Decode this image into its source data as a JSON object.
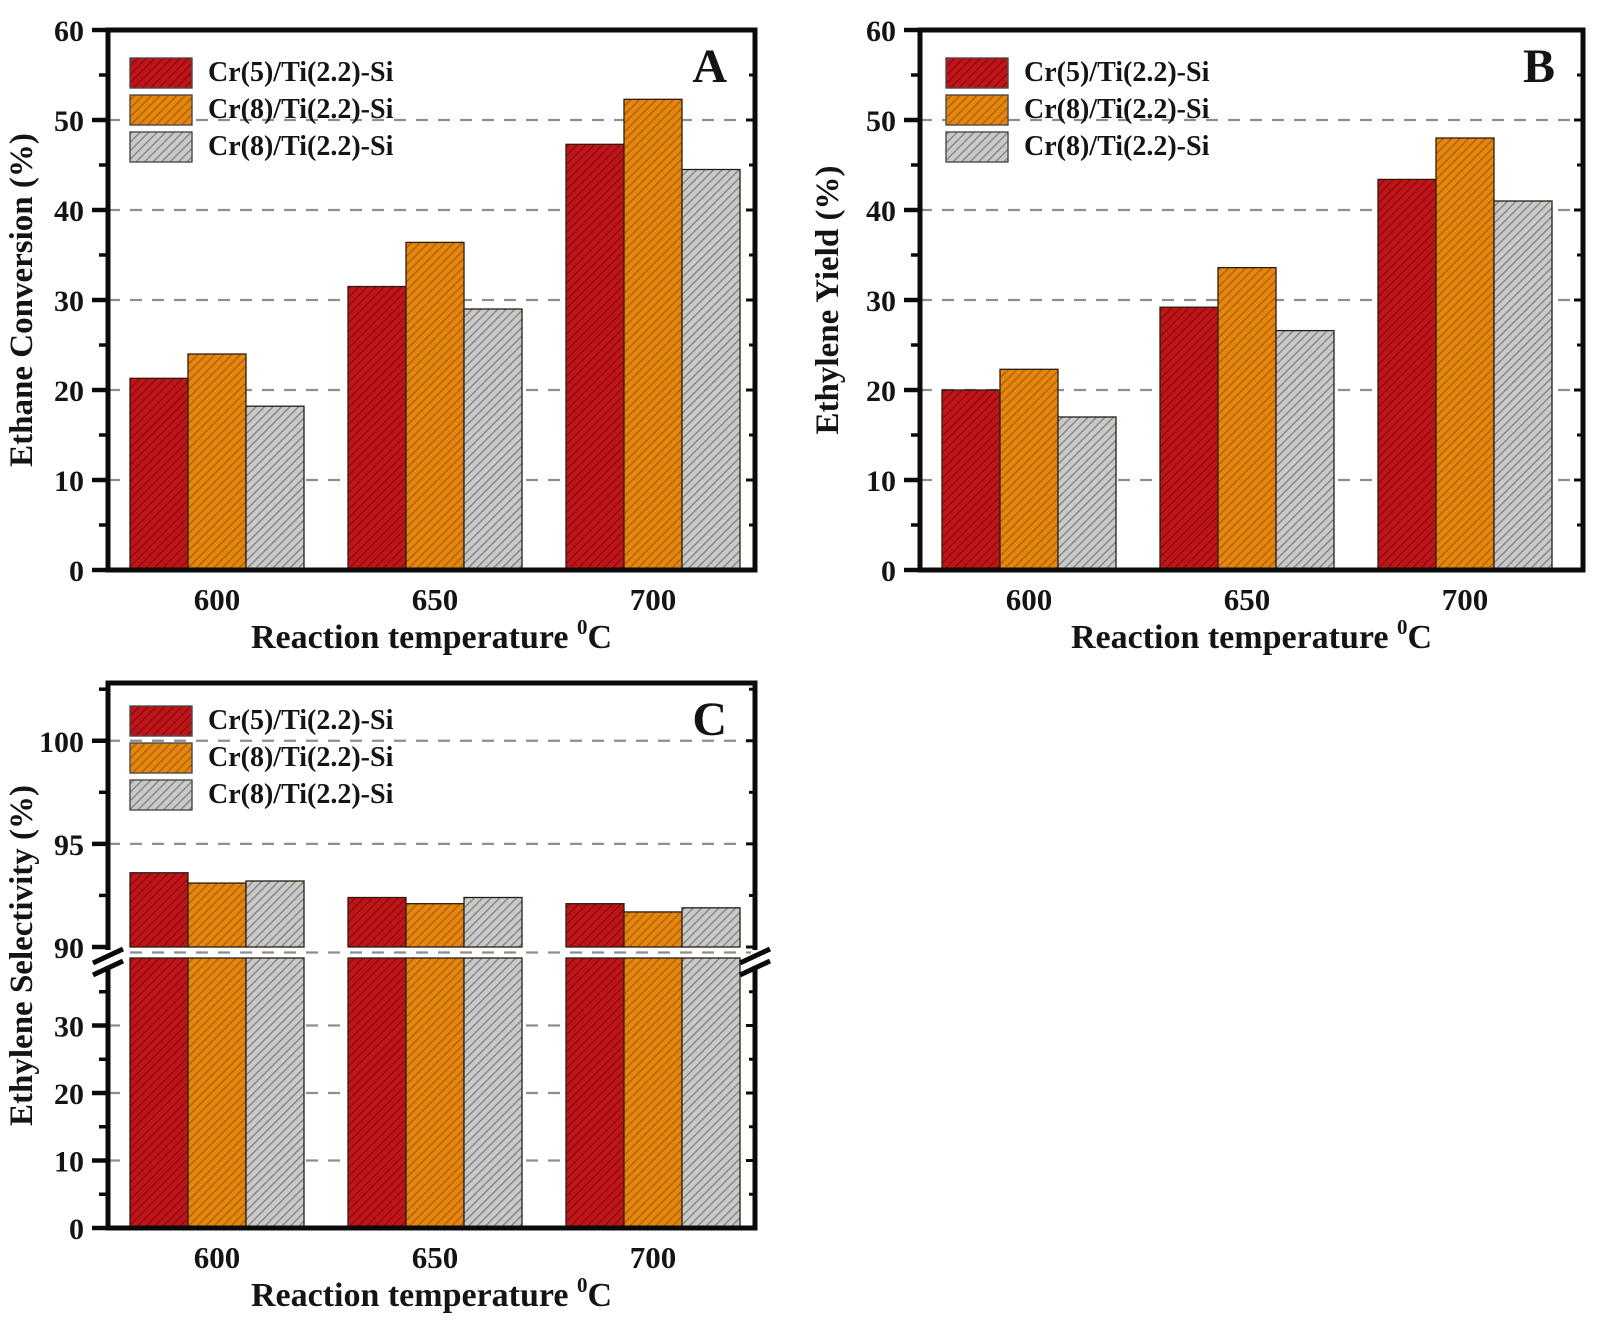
{
  "figure": {
    "background": "#ffffff",
    "text_color": "#141414",
    "spine_color": "#0b0b0b",
    "grid_color": "#8e8e8e"
  },
  "chart_data": [
    {
      "key": "A",
      "type": "bar",
      "panel_label": "A",
      "ylabel": "Ethane Conversion  (%)",
      "xlabel": {
        "text": "Reaction temperature",
        "superscript": "0",
        "unit": "C"
      },
      "categories": [
        "600",
        "650",
        "700"
      ],
      "series": [
        {
          "name": "Cr(5)/Ti(2.2)-Si",
          "color": "#c11418",
          "hatch": "#850c0f",
          "values": [
            21.3,
            31.5,
            47.3
          ]
        },
        {
          "name": "Cr(8)/Ti(2.2)-Si",
          "color": "#e6860e",
          "hatch": "#a65f06",
          "values": [
            24.0,
            36.4,
            52.3
          ]
        },
        {
          "name": "Cr(8)/Ti(2.2)-Si",
          "color": "#c9c9c9",
          "hatch": "#7f7f7f",
          "values": [
            18.2,
            29.0,
            44.5
          ]
        }
      ],
      "yaxis": {
        "type": "linear",
        "min": 0,
        "max": 60,
        "major_ticks": [
          0,
          10,
          20,
          30,
          40,
          50,
          60
        ],
        "minor_ticks": [
          5,
          15,
          25,
          35,
          45,
          55
        ],
        "gridlines": [
          10,
          20,
          30,
          40,
          50
        ],
        "grid_dashed": true
      },
      "legend_position": "top-left"
    },
    {
      "key": "B",
      "type": "bar",
      "panel_label": "B",
      "ylabel": "Ethylene Yield  (%)",
      "xlabel": {
        "text": "Reaction temperature",
        "superscript": "0",
        "unit": "C"
      },
      "categories": [
        "600",
        "650",
        "700"
      ],
      "series": [
        {
          "name": "Cr(5)/Ti(2.2)-Si",
          "color": "#c11418",
          "hatch": "#850c0f",
          "values": [
            20.0,
            29.2,
            43.4
          ]
        },
        {
          "name": "Cr(8)/Ti(2.2)-Si",
          "color": "#e6860e",
          "hatch": "#a65f06",
          "values": [
            22.3,
            33.6,
            48.0
          ]
        },
        {
          "name": "Cr(8)/Ti(2.2)-Si",
          "color": "#c9c9c9",
          "hatch": "#7f7f7f",
          "values": [
            17.0,
            26.6,
            41.0
          ]
        }
      ],
      "yaxis": {
        "type": "linear",
        "min": 0,
        "max": 60,
        "major_ticks": [
          0,
          10,
          20,
          30,
          40,
          50,
          60
        ],
        "minor_ticks": [
          5,
          15,
          25,
          35,
          45,
          55
        ],
        "gridlines": [
          10,
          20,
          30,
          40,
          50
        ],
        "grid_dashed": true
      },
      "legend_position": "top-left"
    },
    {
      "key": "C",
      "type": "bar",
      "panel_label": "C",
      "ylabel": "Ethylene Selectivity  (%)",
      "xlabel": {
        "text": "Reaction temperature",
        "superscript": "0",
        "unit": "C"
      },
      "categories": [
        "600",
        "650",
        "700"
      ],
      "series": [
        {
          "name": "Cr(5)/Ti(2.2)-Si",
          "color": "#c11418",
          "hatch": "#850c0f",
          "values": [
            93.6,
            92.4,
            92.1
          ]
        },
        {
          "name": "Cr(8)/Ti(2.2)-Si",
          "color": "#e6860e",
          "hatch": "#a65f06",
          "values": [
            93.1,
            92.1,
            91.7
          ]
        },
        {
          "name": "Cr(8)/Ti(2.2)-Si",
          "color": "#c9c9c9",
          "hatch": "#7f7f7f",
          "values": [
            93.2,
            92.4,
            91.9
          ]
        }
      ],
      "yaxis": {
        "type": "broken",
        "break_between": [
          40,
          90
        ],
        "upper": {
          "min": 90,
          "max": 102.8,
          "major_ticks": [
            90,
            95,
            100
          ],
          "minor_ticks": [
            92.5,
            97.5,
            102.5
          ],
          "gridlines": [
            95,
            100
          ],
          "break_gridline": 90
        },
        "lower": {
          "min": 0,
          "max": 40,
          "major_ticks": [
            0,
            10,
            20,
            30
          ],
          "minor_ticks": [
            5,
            15,
            25,
            35
          ],
          "gridlines": [
            10,
            20,
            30
          ]
        },
        "grid_dashed": true
      },
      "legend_position": "top-left"
    }
  ]
}
